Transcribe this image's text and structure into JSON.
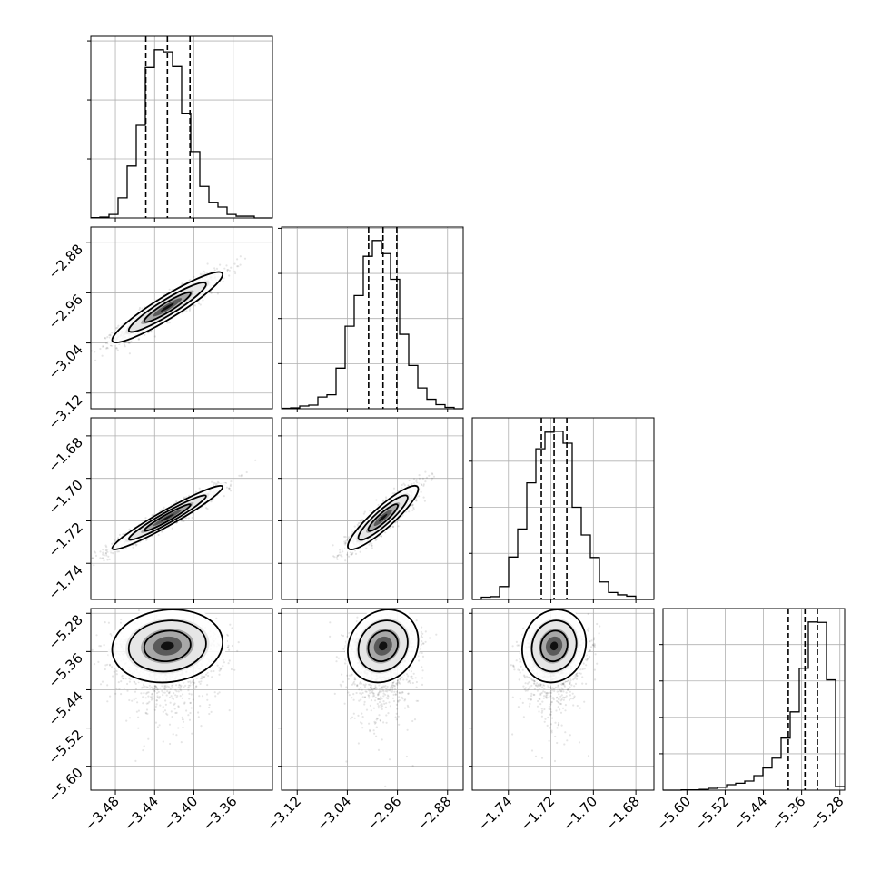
{
  "chart_data": {
    "type": "corner",
    "title": "",
    "params": [
      {
        "range": [
          -3.505,
          -3.32
        ],
        "ticks": [
          -3.48,
          -3.44,
          -3.4,
          -3.36
        ],
        "tick_labels": [
          "−3.48",
          "−3.44",
          "−3.40",
          "−3.36"
        ],
        "median": -3.427,
        "q16": -3.449,
        "q84": -3.404
      },
      {
        "range": [
          -3.145,
          -2.855
        ],
        "ticks": [
          -3.12,
          -3.04,
          -2.96,
          -2.88
        ],
        "tick_labels": [
          "−3.12",
          "−3.04",
          "−2.96",
          "−2.88"
        ],
        "median": -2.983,
        "q16": -3.006,
        "q84": -2.961
      },
      {
        "range": [
          -1.757,
          -1.6715
        ],
        "ticks": [
          -1.74,
          -1.72,
          -1.7,
          -1.68
        ],
        "tick_labels": [
          "−1.74",
          "−1.72",
          "−1.70",
          "−1.68"
        ],
        "median": -1.7185,
        "q16": -1.7245,
        "q84": -1.7125
      },
      {
        "range": [
          -5.65,
          -5.27
        ],
        "ticks": [
          -5.6,
          -5.52,
          -5.44,
          -5.36,
          -5.28
        ],
        "tick_labels": [
          "−5.60",
          "−5.52",
          "−5.44",
          "−5.36",
          "−5.28"
        ],
        "median": -5.353,
        "q16": -5.388,
        "q84": -5.327
      }
    ],
    "histograms": [
      {
        "bins": 20,
        "counts": [
          1,
          3,
          12,
          68,
          176,
          314,
          510,
          570,
          563,
          513,
          355,
          225,
          107,
          53,
          37,
          12,
          6,
          6,
          0,
          0
        ]
      },
      {
        "bins": 20,
        "counts": [
          1,
          2,
          6,
          8,
          26,
          31,
          90,
          183,
          251,
          338,
          373,
          344,
          287,
          165,
          96,
          46,
          21,
          9,
          3,
          0
        ]
      },
      {
        "bins": 20,
        "counts": [
          0,
          5,
          6,
          28,
          92,
          153,
          253,
          327,
          363,
          365,
          339,
          200,
          140,
          91,
          38,
          15,
          10,
          7,
          0,
          0
        ]
      },
      {
        "bins": 20,
        "counts": [
          0,
          0,
          1,
          1,
          2,
          5,
          8,
          15,
          19,
          25,
          40,
          61,
          88,
          143,
          215,
          335,
          462,
          461,
          303,
          10
        ]
      }
    ],
    "correlations": [
      {
        "pair": [
          0,
          1
        ],
        "rho": 0.93
      },
      {
        "pair": [
          0,
          2
        ],
        "rho": 0.96
      },
      {
        "pair": [
          1,
          2
        ],
        "rho": 0.9
      },
      {
        "pair": [
          0,
          3
        ],
        "rho": 0.1
      },
      {
        "pair": [
          1,
          3
        ],
        "rho": 0.15
      },
      {
        "pair": [
          2,
          3
        ],
        "rho": 0.1
      }
    ],
    "contour_levels": [
      0.39,
      0.86,
      0.99
    ],
    "grid": true,
    "legend": "none",
    "xlabel": "",
    "ylabel": ""
  }
}
